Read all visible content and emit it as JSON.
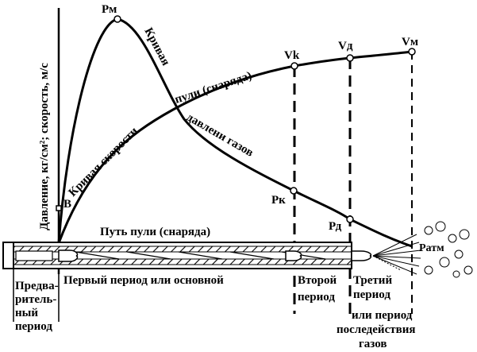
{
  "diagram": {
    "y_axis_label": "Давление, кг/см²; скорость, м/с",
    "points": {
      "pm": "Рм",
      "pk": "Рк",
      "pd": "Рд",
      "patm": "Ратм",
      "vk": "Vk",
      "vd": "Vд",
      "vm": "Vм",
      "b": "В"
    },
    "curves": {
      "pressure_label_1": "Кривая",
      "pressure_label_2": "давлени газов",
      "velocity_label_1": "Кривая скорости",
      "velocity_label_2": "пули (снаряда)"
    },
    "path_label": "Путь пули (снаряда)",
    "periods": {
      "preliminary": [
        "Предва-",
        "ритель-",
        "ный",
        "период"
      ],
      "first": "Первый период или основной",
      "second": [
        "Второй",
        "период"
      ],
      "third": [
        "Третий",
        "период"
      ],
      "aftereffect": [
        "или период",
        "последействия",
        "газов"
      ]
    },
    "colors": {
      "ink": "#000000",
      "barrel_bg": "#ffffff"
    }
  }
}
